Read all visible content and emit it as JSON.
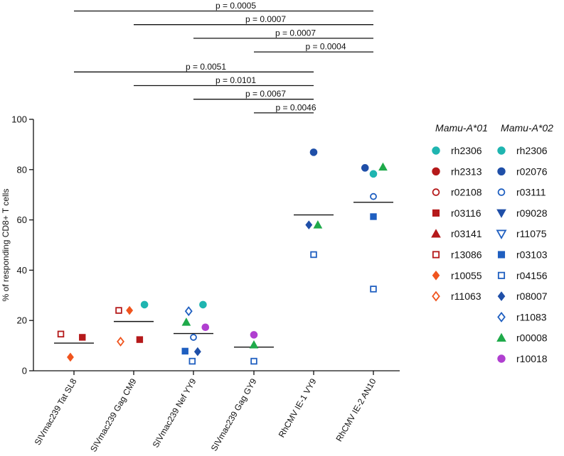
{
  "chart_data": {
    "type": "scatter",
    "title": "",
    "xlabel": "",
    "ylabel": "% of responding CD8+ T cells",
    "ylim": [
      0,
      100
    ],
    "yticks": [
      0,
      20,
      40,
      60,
      80,
      100
    ],
    "categories": [
      "SIVmac239 Tat SL8",
      "SIVmac239 Gag CM9",
      "SIVmac239 Nef YY9",
      "SIVmac239 Gag GY9",
      "RhCMV IE-1 VY9",
      "RhCMV IE-2 AN10"
    ],
    "means": [
      11,
      19.6,
      14.8,
      9.4,
      62,
      67
    ],
    "comparisons": [
      {
        "from": 1,
        "to": 6,
        "label": "p = 0.0005"
      },
      {
        "from": 2,
        "to": 6,
        "label": "p = 0.0007"
      },
      {
        "from": 3,
        "to": 6,
        "label": "p = 0.0007"
      },
      {
        "from": 4,
        "to": 6,
        "label": "p = 0.0004"
      },
      {
        "from": 1,
        "to": 5,
        "label": "p = 0.0051"
      },
      {
        "from": 2,
        "to": 5,
        "label": "p = 0.0101"
      },
      {
        "from": 3,
        "to": 5,
        "label": "p = 0.0067"
      },
      {
        "from": 4,
        "to": 5,
        "label": "p = 0.0046"
      }
    ],
    "legend_groups": [
      {
        "title": "Mamu-A*01",
        "entries": [
          {
            "name": "rh2306",
            "marker": "circle",
            "fill": true,
            "color": "#1fb5b0"
          },
          {
            "name": "rh2313",
            "marker": "circle",
            "fill": true,
            "color": "#b5191a"
          },
          {
            "name": "r02108",
            "marker": "circle",
            "fill": false,
            "color": "#b5191a"
          },
          {
            "name": "r03116",
            "marker": "square",
            "fill": true,
            "color": "#b5191a"
          },
          {
            "name": "r03141",
            "marker": "triangle-up",
            "fill": true,
            "color": "#b5191a"
          },
          {
            "name": "r13086",
            "marker": "square",
            "fill": false,
            "color": "#b5191a"
          },
          {
            "name": "r10055",
            "marker": "diamond",
            "fill": true,
            "color": "#f0541e"
          },
          {
            "name": "r11063",
            "marker": "diamond",
            "fill": false,
            "color": "#f0541e"
          }
        ]
      },
      {
        "title": "Mamu-A*02",
        "entries": [
          {
            "name": "rh2306",
            "marker": "circle",
            "fill": true,
            "color": "#1fb5b0"
          },
          {
            "name": "r02076",
            "marker": "circle",
            "fill": true,
            "color": "#1f4fa8"
          },
          {
            "name": "r03111",
            "marker": "circle",
            "fill": false,
            "color": "#1f5fc0"
          },
          {
            "name": "r09028",
            "marker": "triangle-down",
            "fill": true,
            "color": "#1f4fa8"
          },
          {
            "name": "r11075",
            "marker": "triangle-down",
            "fill": false,
            "color": "#1f5fc0"
          },
          {
            "name": "r03103",
            "marker": "square",
            "fill": true,
            "color": "#1f5fc0"
          },
          {
            "name": "r04156",
            "marker": "square",
            "fill": false,
            "color": "#1f5fc0"
          },
          {
            "name": "r08007",
            "marker": "diamond",
            "fill": true,
            "color": "#1f4fa8"
          },
          {
            "name": "r11083",
            "marker": "diamond",
            "fill": false,
            "color": "#1f5fc0"
          },
          {
            "name": "r00008",
            "marker": "triangle-up",
            "fill": true,
            "color": "#1faa4a"
          },
          {
            "name": "r10018",
            "marker": "circle",
            "fill": true,
            "color": "#b03fd0"
          }
        ]
      }
    ],
    "points": [
      {
        "cat": 0,
        "y": 14.6,
        "dx": -0.22,
        "marker": "square",
        "fill": false,
        "color": "#b5191a",
        "animal": "r13086"
      },
      {
        "cat": 0,
        "y": 13.3,
        "dx": 0.14,
        "marker": "square",
        "fill": true,
        "color": "#b5191a",
        "animal": "r03116"
      },
      {
        "cat": 0,
        "y": 5.4,
        "dx": -0.06,
        "marker": "diamond",
        "fill": true,
        "color": "#f0541e",
        "animal": "r10055"
      },
      {
        "cat": 1,
        "y": 24,
        "dx": -0.25,
        "marker": "square",
        "fill": false,
        "color": "#b5191a",
        "animal": "r13086"
      },
      {
        "cat": 1,
        "y": 24,
        "dx": -0.07,
        "marker": "diamond",
        "fill": true,
        "color": "#f0541e",
        "animal": "r10055"
      },
      {
        "cat": 1,
        "y": 26.3,
        "dx": 0.18,
        "marker": "circle",
        "fill": true,
        "color": "#1fb5b0",
        "animal": "rh2306"
      },
      {
        "cat": 1,
        "y": 11.6,
        "dx": -0.22,
        "marker": "diamond",
        "fill": false,
        "color": "#f0541e",
        "animal": "r11063"
      },
      {
        "cat": 1,
        "y": 12.4,
        "dx": 0.1,
        "marker": "square",
        "fill": true,
        "color": "#b5191a",
        "animal": "r03116"
      },
      {
        "cat": 2,
        "y": 23.7,
        "dx": -0.08,
        "marker": "diamond",
        "fill": false,
        "color": "#1f5fc0",
        "animal": "r11083"
      },
      {
        "cat": 2,
        "y": 26.3,
        "dx": 0.16,
        "marker": "circle",
        "fill": true,
        "color": "#1fb5b0",
        "animal": "rh2306"
      },
      {
        "cat": 2,
        "y": 19.3,
        "dx": -0.12,
        "marker": "triangle-up",
        "fill": true,
        "color": "#1faa4a",
        "animal": "r00008"
      },
      {
        "cat": 2,
        "y": 17.3,
        "dx": 0.2,
        "marker": "circle",
        "fill": true,
        "color": "#b03fd0",
        "animal": "r10018"
      },
      {
        "cat": 2,
        "y": 13.3,
        "dx": 0.0,
        "marker": "circle",
        "fill": false,
        "color": "#1f5fc0",
        "animal": "r03111"
      },
      {
        "cat": 2,
        "y": 7.8,
        "dx": -0.14,
        "marker": "square",
        "fill": true,
        "color": "#1f5fc0",
        "animal": "r03103"
      },
      {
        "cat": 2,
        "y": 7.6,
        "dx": 0.07,
        "marker": "diamond",
        "fill": true,
        "color": "#1f4fa8",
        "animal": "r08007"
      },
      {
        "cat": 2,
        "y": 3.8,
        "dx": -0.02,
        "marker": "square",
        "fill": false,
        "color": "#1f5fc0",
        "animal": "r04156"
      },
      {
        "cat": 3,
        "y": 14.3,
        "dx": 0.0,
        "marker": "circle",
        "fill": true,
        "color": "#b03fd0",
        "animal": "r10018"
      },
      {
        "cat": 3,
        "y": 10.3,
        "dx": 0.0,
        "marker": "triangle-up",
        "fill": true,
        "color": "#1faa4a",
        "animal": "r00008"
      },
      {
        "cat": 3,
        "y": 3.8,
        "dx": 0.0,
        "marker": "square",
        "fill": false,
        "color": "#1f5fc0",
        "animal": "r04156"
      },
      {
        "cat": 4,
        "y": 86.9,
        "dx": 0.0,
        "marker": "circle",
        "fill": true,
        "color": "#1f4fa8",
        "animal": "r02076"
      },
      {
        "cat": 4,
        "y": 58,
        "dx": -0.08,
        "marker": "diamond",
        "fill": true,
        "color": "#1f4fa8",
        "animal": "r08007"
      },
      {
        "cat": 4,
        "y": 58,
        "dx": 0.07,
        "marker": "triangle-up",
        "fill": true,
        "color": "#1faa4a",
        "animal": "r00008"
      },
      {
        "cat": 4,
        "y": 46.2,
        "dx": 0.0,
        "marker": "square",
        "fill": false,
        "color": "#1f5fc0",
        "animal": "r04156"
      },
      {
        "cat": 5,
        "y": 80.7,
        "dx": -0.14,
        "marker": "circle",
        "fill": true,
        "color": "#1f4fa8",
        "animal": "r02076"
      },
      {
        "cat": 5,
        "y": 81,
        "dx": 0.16,
        "marker": "triangle-up",
        "fill": true,
        "color": "#1faa4a",
        "animal": "r00008"
      },
      {
        "cat": 5,
        "y": 78.3,
        "dx": 0.0,
        "marker": "circle",
        "fill": true,
        "color": "#1fb5b0",
        "animal": "rh2306"
      },
      {
        "cat": 5,
        "y": 69.3,
        "dx": 0.0,
        "marker": "circle",
        "fill": false,
        "color": "#1f5fc0",
        "animal": "r03111"
      },
      {
        "cat": 5,
        "y": 61.3,
        "dx": 0.0,
        "marker": "square",
        "fill": true,
        "color": "#1f5fc0",
        "animal": "r03103"
      },
      {
        "cat": 5,
        "y": 32.5,
        "dx": 0.0,
        "marker": "square",
        "fill": false,
        "color": "#1f5fc0",
        "animal": "r04156"
      }
    ]
  }
}
